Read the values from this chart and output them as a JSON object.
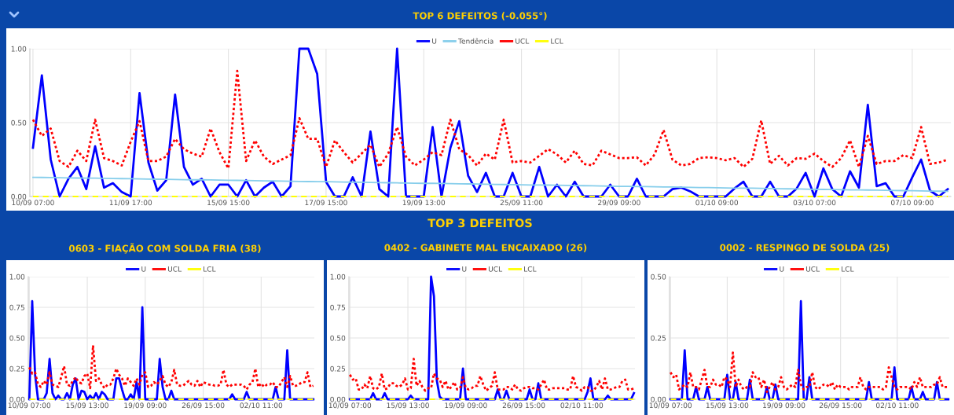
{
  "chart_data": [
    {
      "type": "line",
      "title": "TOP 6 DEFEITOS (-0.055°)",
      "legend": "top",
      "grid": true,
      "ylim": [
        0,
        1
      ],
      "yticks": [
        {
          "value": 0,
          "label": "0.00"
        },
        {
          "value": 0.5,
          "label": "0.50"
        },
        {
          "value": 1,
          "label": "1.00"
        }
      ],
      "categories": [
        "10/09 07:00",
        null,
        null,
        null,
        null,
        null,
        null,
        null,
        null,
        null,
        null,
        "11/09 17:00",
        null,
        null,
        null,
        null,
        null,
        null,
        null,
        null,
        null,
        null,
        "15/09 15:00",
        null,
        null,
        null,
        null,
        null,
        null,
        null,
        null,
        null,
        null,
        "17/09 15:00",
        null,
        null,
        null,
        null,
        null,
        null,
        null,
        null,
        null,
        null,
        "19/09 13:00",
        null,
        null,
        null,
        null,
        null,
        null,
        null,
        null,
        null,
        null,
        "25/09 11:00",
        null,
        null,
        null,
        null,
        null,
        null,
        null,
        null,
        null,
        null,
        "29/09 09:00",
        null,
        null,
        null,
        null,
        null,
        null,
        null,
        null,
        null,
        null,
        "01/10 09:00",
        null,
        null,
        null,
        null,
        null,
        null,
        null,
        null,
        null,
        null,
        "03/10 07:00",
        null,
        null,
        null,
        null,
        null,
        null,
        null,
        null,
        null,
        null,
        "07/10 09:00",
        null,
        null,
        null,
        null
      ],
      "series": [
        {
          "name": "U",
          "color": "#0000ff",
          "line_style": "solid",
          "values": [
            0.33,
            0.82,
            0.25,
            0,
            0.12,
            0.2,
            0.05,
            0.34,
            0.06,
            0.09,
            0.03,
            0,
            0.7,
            0.23,
            0.04,
            0.11,
            0.69,
            0.2,
            0.08,
            0.12,
            0,
            0.08,
            0.08,
            0,
            0.11,
            0,
            0.06,
            0.1,
            0,
            0.07,
            1,
            1,
            0.83,
            0.1,
            0,
            0,
            0.13,
            0,
            0.44,
            0.05,
            0,
            1,
            0,
            0,
            0,
            0.47,
            0,
            0.33,
            0.51,
            0.14,
            0.03,
            0.16,
            0,
            0,
            0.16,
            0,
            0,
            0.2,
            0,
            0.08,
            0,
            0.1,
            0,
            0,
            0,
            0.08,
            0,
            0,
            0.12,
            0,
            0,
            0,
            0.05,
            0.06,
            0.035,
            0,
            0,
            0,
            0,
            0.055,
            0.1,
            0,
            0,
            0.1,
            0,
            0,
            0.055,
            0.16,
            0,
            0.19,
            0.05,
            0,
            0.17,
            0.06,
            0.62,
            0.07,
            0.09,
            0,
            0,
            0.13,
            0.25,
            0.04,
            0,
            0.05
          ]
        },
        {
          "name": "Tendência",
          "color": "#87ceeb",
          "line_style": "solid",
          "values": [
            0.13,
            0.129,
            0.128,
            0.127,
            0.126,
            0.125,
            0.124,
            0.124,
            0.123,
            0.122,
            0.121,
            0.12,
            0.119,
            0.118,
            0.117,
            0.116,
            0.115,
            0.114,
            0.113,
            0.113,
            0.112,
            0.111,
            0.11,
            0.109,
            0.108,
            0.107,
            0.106,
            0.105,
            0.104,
            0.103,
            0.102,
            0.101,
            0.1,
            0.1,
            0.099,
            0.098,
            0.097,
            0.096,
            0.095,
            0.094,
            0.093,
            0.092,
            0.091,
            0.09,
            0.089,
            0.089,
            0.088,
            0.087,
            0.086,
            0.085,
            0.084,
            0.083,
            0.082,
            0.081,
            0.08,
            0.079,
            0.078,
            0.078,
            0.077,
            0.076,
            0.075,
            0.074,
            0.073,
            0.072,
            0.071,
            0.07,
            0.069,
            0.068,
            0.067,
            0.067,
            0.066,
            0.065,
            0.064,
            0.063,
            0.062,
            0.061,
            0.06,
            0.059,
            0.058,
            0.057,
            0.056,
            0.056,
            0.055,
            0.054,
            0.053,
            0.052,
            0.051,
            0.05,
            0.049,
            0.048,
            0.047,
            0.046,
            0.045,
            0.045,
            0.044,
            0.043,
            0.042,
            0.041,
            0.04,
            0.039,
            0.038,
            0.037,
            0.036,
            0.035
          ]
        },
        {
          "name": "UCL",
          "color": "#ff0000",
          "line_style": "dotted",
          "values": [
            0.52,
            0.41,
            0.46,
            0.24,
            0.2,
            0.31,
            0.24,
            0.52,
            0.26,
            0.24,
            0.21,
            0.37,
            0.51,
            0.24,
            0.24,
            0.27,
            0.39,
            0.32,
            0.29,
            0.27,
            0.46,
            0.3,
            0.19,
            0.85,
            0.24,
            0.38,
            0.27,
            0.22,
            0.25,
            0.28,
            0.53,
            0.39,
            0.39,
            0.2,
            0.38,
            0.3,
            0.23,
            0.29,
            0.35,
            0.2,
            0.29,
            0.47,
            0.27,
            0.21,
            0.25,
            0.3,
            0.28,
            0.52,
            0.32,
            0.28,
            0.21,
            0.29,
            0.25,
            0.52,
            0.23,
            0.24,
            0.23,
            0.275,
            0.32,
            0.285,
            0.23,
            0.31,
            0.22,
            0.21,
            0.31,
            0.285,
            0.26,
            0.26,
            0.265,
            0.21,
            0.285,
            0.45,
            0.25,
            0.21,
            0.22,
            0.26,
            0.265,
            0.26,
            0.245,
            0.26,
            0.2,
            0.255,
            0.515,
            0.22,
            0.275,
            0.21,
            0.26,
            0.255,
            0.29,
            0.24,
            0.2,
            0.26,
            0.38,
            0.2,
            0.41,
            0.22,
            0.24,
            0.24,
            0.28,
            0.26,
            0.47,
            0.22,
            0.23,
            0.25
          ]
        },
        {
          "name": "LCL",
          "color": "#ffff00",
          "line_style": "dashed",
          "values": [
            0,
            0,
            0,
            0,
            0,
            0,
            0,
            0,
            0,
            0,
            0,
            0,
            0,
            0,
            0,
            0,
            0,
            0,
            0,
            0,
            0,
            0,
            0,
            0,
            0,
            0,
            0,
            0,
            0,
            0,
            0,
            0,
            0,
            0,
            0,
            0,
            0,
            0,
            0,
            0,
            0,
            0,
            0,
            0,
            0,
            0,
            0,
            0,
            0,
            0,
            0,
            0,
            0,
            0,
            0,
            0,
            0,
            0,
            0,
            0,
            0,
            0,
            0,
            0,
            0,
            0,
            0,
            0,
            0,
            0,
            0,
            0,
            0,
            0,
            0,
            0,
            0,
            0,
            0,
            0,
            0,
            0,
            0,
            0,
            0,
            0,
            0,
            0,
            0,
            0,
            0,
            0,
            0,
            0,
            0,
            0,
            0,
            0,
            0,
            0,
            0,
            0,
            0,
            0
          ]
        }
      ]
    },
    {
      "type": "line",
      "title": "0603 - FIAÇÃO COM SOLDA FRIA (38)",
      "annotations": [
        "TOP 3 DEFEITOS"
      ],
      "legend": "top",
      "grid": true,
      "ylim": [
        0,
        1
      ],
      "yticks": [
        {
          "value": 0,
          "label": "0.00"
        },
        {
          "value": 0.25,
          "label": "0.25"
        },
        {
          "value": 0.5,
          "label": "0.50"
        },
        {
          "value": 0.75,
          "label": "0.75"
        },
        {
          "value": 1,
          "label": "1.00"
        }
      ],
      "categories": [
        "10/09 07:00",
        null,
        null,
        null,
        null,
        null,
        null,
        null,
        null,
        null,
        null,
        null,
        null,
        null,
        null,
        null,
        null,
        null,
        null,
        null,
        "15/09 13:00",
        null,
        null,
        null,
        null,
        null,
        null,
        null,
        null,
        null,
        null,
        null,
        null,
        null,
        null,
        null,
        null,
        null,
        null,
        null,
        "19/09 09:00",
        null,
        null,
        null,
        null,
        null,
        null,
        null,
        null,
        null,
        null,
        null,
        null,
        null,
        null,
        null,
        null,
        null,
        null,
        null,
        "26/09 15:00",
        null,
        null,
        null,
        null,
        null,
        null,
        null,
        null,
        null,
        null,
        null,
        null,
        null,
        null,
        null,
        null,
        null,
        null,
        null,
        "02/10 11:00",
        null,
        null,
        null,
        null,
        null,
        null,
        null,
        null,
        null,
        null,
        null,
        null,
        null,
        null,
        null,
        null,
        null,
        null
      ],
      "series": [
        {
          "name": "U",
          "color": "#0000ff",
          "line_style": "solid",
          "values": [
            0,
            0.8,
            0.2,
            0,
            0,
            0,
            0.05,
            0.33,
            0.05,
            0,
            0.03,
            0,
            0,
            0.05,
            0,
            0.12,
            0.17,
            0,
            0.07,
            0.06,
            0,
            0.03,
            0,
            0.05,
            0,
            0.06,
            0.04,
            0,
            0,
            0,
            0.17,
            0.17,
            0.08,
            0,
            0,
            0.04,
            0,
            0.14,
            0,
            0.75,
            0,
            0,
            0,
            0,
            0,
            0.33,
            0.1,
            0,
            0,
            0.07,
            0,
            0,
            0,
            0,
            0,
            0,
            0,
            0,
            0,
            0,
            0,
            0,
            0,
            0,
            0,
            0,
            0,
            0,
            0,
            0,
            0.04,
            0,
            0,
            0,
            0,
            0.06,
            0,
            0,
            0,
            0,
            0,
            0,
            0,
            0,
            0,
            0.1,
            0,
            0,
            0,
            0.4,
            0,
            0,
            0,
            0,
            0,
            0,
            0,
            0,
            0
          ]
        },
        {
          "name": "UCL",
          "color": "#ff0000",
          "line_style": "dotted",
          "values": [
            0.26,
            0.21,
            0.22,
            0.12,
            0.1,
            0.15,
            0.12,
            0.22,
            0.12,
            0.11,
            0.1,
            0.18,
            0.27,
            0.12,
            0.11,
            0.15,
            0.18,
            0.14,
            0.13,
            0.19,
            0.21,
            0.09,
            0.44,
            0.15,
            0.17,
            0.12,
            0.09,
            0.12,
            0.12,
            0.17,
            0.25,
            0.2,
            0.17,
            0.11,
            0.17,
            0.14,
            0.11,
            0.17,
            0.12,
            0.2,
            0.22,
            0.1,
            0.11,
            0.14,
            0.12,
            0.15,
            0.19,
            0.12,
            0.1,
            0.14,
            0.24,
            0.12,
            0.11,
            0.11,
            0.13,
            0.15,
            0.12,
            0.11,
            0.15,
            0.1,
            0.14,
            0.13,
            0.12,
            0.12,
            0.11,
            0.11,
            0.12,
            0.24,
            0.12,
            0.1,
            0.12,
            0.12,
            0.12,
            0.12,
            0.11,
            0.08,
            0.12,
            0.14,
            0.25,
            0.1,
            0.13,
            0.1,
            0.12,
            0.12,
            0.14,
            0.1,
            0.1,
            0.14,
            0.18,
            0.1,
            0.19,
            0.11,
            0.11,
            0.12,
            0.14,
            0.14,
            0.22,
            0.1,
            0.11
          ]
        },
        {
          "name": "LCL",
          "color": "#ffff00",
          "line_style": "dashed",
          "values": [
            0,
            0,
            0,
            0,
            0,
            0,
            0,
            0,
            0,
            0,
            0,
            0,
            0,
            0,
            0,
            0,
            0,
            0,
            0,
            0,
            0,
            0,
            0,
            0,
            0,
            0,
            0,
            0,
            0,
            0,
            0,
            0,
            0,
            0,
            0,
            0,
            0,
            0,
            0,
            0,
            0,
            0,
            0,
            0,
            0,
            0,
            0,
            0,
            0,
            0,
            0,
            0,
            0,
            0,
            0,
            0,
            0,
            0,
            0,
            0,
            0,
            0,
            0,
            0,
            0,
            0,
            0,
            0,
            0,
            0,
            0,
            0,
            0,
            0,
            0,
            0,
            0,
            0,
            0,
            0,
            0,
            0,
            0,
            0,
            0,
            0,
            0,
            0,
            0,
            0,
            0,
            0,
            0,
            0,
            0,
            0,
            0,
            0,
            0
          ]
        }
      ]
    },
    {
      "type": "line",
      "title": "0402 - GABINETE MAL ENCAIXADO (26)",
      "legend": "top",
      "grid": true,
      "ylim": [
        0,
        1
      ],
      "yticks": [
        {
          "value": 0,
          "label": "0.00"
        },
        {
          "value": 0.25,
          "label": "0.25"
        },
        {
          "value": 0.5,
          "label": "0.50"
        },
        {
          "value": 0.75,
          "label": "0.75"
        },
        {
          "value": 1,
          "label": "1.00"
        }
      ],
      "categories": [
        "10/09 07:00",
        null,
        null,
        null,
        null,
        null,
        null,
        null,
        null,
        null,
        null,
        null,
        null,
        null,
        null,
        null,
        null,
        null,
        null,
        null,
        "15/09 13:00",
        null,
        null,
        null,
        null,
        null,
        null,
        null,
        null,
        null,
        null,
        null,
        null,
        null,
        null,
        null,
        null,
        null,
        null,
        null,
        "19/09 09:00",
        null,
        null,
        null,
        null,
        null,
        null,
        null,
        null,
        null,
        null,
        null,
        null,
        null,
        null,
        null,
        null,
        null,
        null,
        null,
        "26/09 15:00",
        null,
        null,
        null,
        null,
        null,
        null,
        null,
        null,
        null,
        null,
        null,
        null,
        null,
        null,
        null,
        null,
        null,
        null,
        null,
        "02/10 11:00",
        null,
        null,
        null,
        null,
        null,
        null,
        null,
        null,
        null,
        null,
        null,
        null,
        null,
        null,
        null,
        null,
        null,
        null
      ],
      "series": [
        {
          "name": "U",
          "color": "#0000ff",
          "line_style": "solid",
          "values": [
            0,
            0,
            0,
            0,
            0,
            0,
            0,
            0,
            0.05,
            0,
            0,
            0,
            0.05,
            0,
            0,
            0,
            0,
            0,
            0,
            0,
            0,
            0.03,
            0,
            0,
            0,
            0,
            0,
            0,
            1,
            0.84,
            0.15,
            0.02,
            0,
            0,
            0,
            0,
            0,
            0,
            0,
            0.25,
            0,
            0,
            0,
            0,
            0,
            0,
            0,
            0,
            0,
            0,
            0,
            0.08,
            0,
            0,
            0.07,
            0,
            0,
            0,
            0,
            0,
            0,
            0,
            0.08,
            0,
            0,
            0.13,
            0,
            0,
            0,
            0,
            0,
            0,
            0,
            0,
            0,
            0,
            0,
            0,
            0,
            0,
            0,
            0,
            0.06,
            0.17,
            0,
            0,
            0,
            0,
            0,
            0.03,
            0,
            0,
            0,
            0,
            0,
            0,
            0,
            0,
            0.05
          ]
        },
        {
          "name": "UCL",
          "color": "#ff0000",
          "line_style": "dotted",
          "values": [
            0.2,
            0.16,
            0.17,
            0.08,
            0.08,
            0.12,
            0.09,
            0.19,
            0.09,
            0.08,
            0.1,
            0.21,
            0.08,
            0.09,
            0.13,
            0.13,
            0.11,
            0.1,
            0.12,
            0.17,
            0.08,
            0.09,
            0.33,
            0.11,
            0.15,
            0.1,
            0.07,
            0.09,
            0.09,
            0.21,
            0.17,
            0.16,
            0.1,
            0.15,
            0.08,
            0.1,
            0.14,
            0.08,
            0.09,
            0.18,
            0.09,
            0.08,
            0.09,
            0.11,
            0.11,
            0.19,
            0.12,
            0.07,
            0.09,
            0.11,
            0.22,
            0.08,
            0.08,
            0.08,
            0.1,
            0.1,
            0.08,
            0.12,
            0.08,
            0.07,
            0.09,
            0.1,
            0.1,
            0.09,
            0.09,
            0.08,
            0.12,
            0.16,
            0.08,
            0.08,
            0.09,
            0.09,
            0.09,
            0.09,
            0.09,
            0.08,
            0.08,
            0.19,
            0.1,
            0.09,
            0.07,
            0.1,
            0.1,
            0.07,
            0.07,
            0.1,
            0.15,
            0.08,
            0.17,
            0.08,
            0.08,
            0.09,
            0.1,
            0.1,
            0.15,
            0.16,
            0.08,
            0.08,
            0.09
          ]
        },
        {
          "name": "LCL",
          "color": "#ffff00",
          "line_style": "dashed",
          "values": [
            0,
            0,
            0,
            0,
            0,
            0,
            0,
            0,
            0,
            0,
            0,
            0,
            0,
            0,
            0,
            0,
            0,
            0,
            0,
            0,
            0,
            0,
            0,
            0,
            0,
            0,
            0,
            0,
            0,
            0,
            0,
            0,
            0,
            0,
            0,
            0,
            0,
            0,
            0,
            0,
            0,
            0,
            0,
            0,
            0,
            0,
            0,
            0,
            0,
            0,
            0,
            0,
            0,
            0,
            0,
            0,
            0,
            0,
            0,
            0,
            0,
            0,
            0,
            0,
            0,
            0,
            0,
            0,
            0,
            0,
            0,
            0,
            0,
            0,
            0,
            0,
            0,
            0,
            0,
            0,
            0,
            0,
            0,
            0,
            0,
            0,
            0,
            0,
            0,
            0,
            0,
            0,
            0,
            0,
            0,
            0,
            0,
            0,
            0
          ]
        }
      ]
    },
    {
      "type": "line",
      "title": "0002 - RESPINGO DE SOLDA (25)",
      "legend": "top",
      "grid": true,
      "ylim": [
        0,
        0.5
      ],
      "yticks": [
        {
          "value": 0,
          "label": "0.00"
        },
        {
          "value": 0.25,
          "label": "0.25"
        },
        {
          "value": 0.5,
          "label": "0.50"
        }
      ],
      "categories": [
        "10/09 07:00",
        null,
        null,
        null,
        null,
        null,
        null,
        null,
        null,
        null,
        null,
        null,
        null,
        null,
        null,
        null,
        null,
        null,
        null,
        null,
        "15/09 13:00",
        null,
        null,
        null,
        null,
        null,
        null,
        null,
        null,
        null,
        null,
        null,
        null,
        null,
        null,
        null,
        null,
        null,
        null,
        null,
        "19/09 09:00",
        null,
        null,
        null,
        null,
        null,
        null,
        null,
        null,
        null,
        null,
        null,
        null,
        null,
        null,
        null,
        null,
        null,
        null,
        null,
        "26/09 15:00",
        null,
        null,
        null,
        null,
        null,
        null,
        null,
        null,
        null,
        null,
        null,
        null,
        null,
        null,
        null,
        null,
        null,
        null,
        null,
        "02/10 11:00",
        null,
        null,
        null,
        null,
        null,
        null,
        null,
        null,
        null,
        null,
        null,
        null,
        null,
        null,
        null,
        null,
        null,
        null
      ],
      "series": [
        {
          "name": "U",
          "color": "#0000ff",
          "line_style": "solid",
          "values": [
            0,
            0,
            0,
            0,
            0,
            0.2,
            0,
            0,
            0,
            0.05,
            0,
            0,
            0,
            0.05,
            0,
            0,
            0,
            0,
            0,
            0,
            0.1,
            0,
            0,
            0.07,
            0,
            0,
            0,
            0,
            0.08,
            0,
            0,
            0,
            0,
            0,
            0.05,
            0,
            0,
            0.06,
            0,
            0,
            0,
            0,
            0,
            0,
            0,
            0,
            0.4,
            0,
            0,
            0.09,
            0,
            0,
            0,
            0,
            0,
            0,
            0,
            0,
            0,
            0,
            0,
            0,
            0,
            0,
            0,
            0,
            0,
            0,
            0,
            0,
            0.07,
            0,
            0,
            0,
            0,
            0,
            0,
            0,
            0,
            0.13,
            0,
            0,
            0,
            0,
            0,
            0.05,
            0,
            0,
            0,
            0.03,
            0,
            0,
            0,
            0,
            0.07,
            0,
            0,
            0,
            0
          ]
        },
        {
          "name": "UCL",
          "color": "#ff0000",
          "line_style": "dotted",
          "values": [
            0.11,
            0.09,
            0.1,
            0.04,
            0.05,
            0.06,
            0.05,
            0.11,
            0.05,
            0.05,
            0.04,
            0.08,
            0.12,
            0.05,
            0.05,
            0.08,
            0.06,
            0.06,
            0.05,
            0.09,
            0.08,
            0.05,
            0.19,
            0.05,
            0.08,
            0.05,
            0.04,
            0.05,
            0.05,
            0.11,
            0.09,
            0.09,
            0.05,
            0.08,
            0.03,
            0.05,
            0.07,
            0.04,
            0.05,
            0.09,
            0.05,
            0.04,
            0.05,
            0.06,
            0.05,
            0.12,
            0.06,
            0.04,
            0.05,
            0.05,
            0.11,
            0.05,
            0.04,
            0.05,
            0.06,
            0.06,
            0.05,
            0.07,
            0.04,
            0.06,
            0.05,
            0.05,
            0.05,
            0.04,
            0.05,
            0.05,
            0.05,
            0.09,
            0.05,
            0.04,
            0.05,
            0.05,
            0.05,
            0.05,
            0.05,
            0.04,
            0.05,
            0.13,
            0.09,
            0.05,
            0.04,
            0.05,
            0.05,
            0.05,
            0.05,
            0.04,
            0.07,
            0.05,
            0.09,
            0.05,
            0.05,
            0.05,
            0.05,
            0.06,
            0.06,
            0.09,
            0.05,
            0.05,
            0.05
          ]
        },
        {
          "name": "LCL",
          "color": "#ffff00",
          "line_style": "dashed",
          "values": [
            0,
            0,
            0,
            0,
            0,
            0,
            0,
            0,
            0,
            0,
            0,
            0,
            0,
            0,
            0,
            0,
            0,
            0,
            0,
            0,
            0,
            0,
            0,
            0,
            0,
            0,
            0,
            0,
            0,
            0,
            0,
            0,
            0,
            0,
            0,
            0,
            0,
            0,
            0,
            0,
            0,
            0,
            0,
            0,
            0,
            0,
            0,
            0,
            0,
            0,
            0,
            0,
            0,
            0,
            0,
            0,
            0,
            0,
            0,
            0,
            0,
            0,
            0,
            0,
            0,
            0,
            0,
            0,
            0,
            0,
            0,
            0,
            0,
            0,
            0,
            0,
            0,
            0,
            0,
            0,
            0,
            0,
            0,
            0,
            0,
            0,
            0,
            0,
            0,
            0,
            0,
            0,
            0,
            0,
            0,
            0,
            0,
            0,
            0
          ]
        }
      ]
    }
  ]
}
